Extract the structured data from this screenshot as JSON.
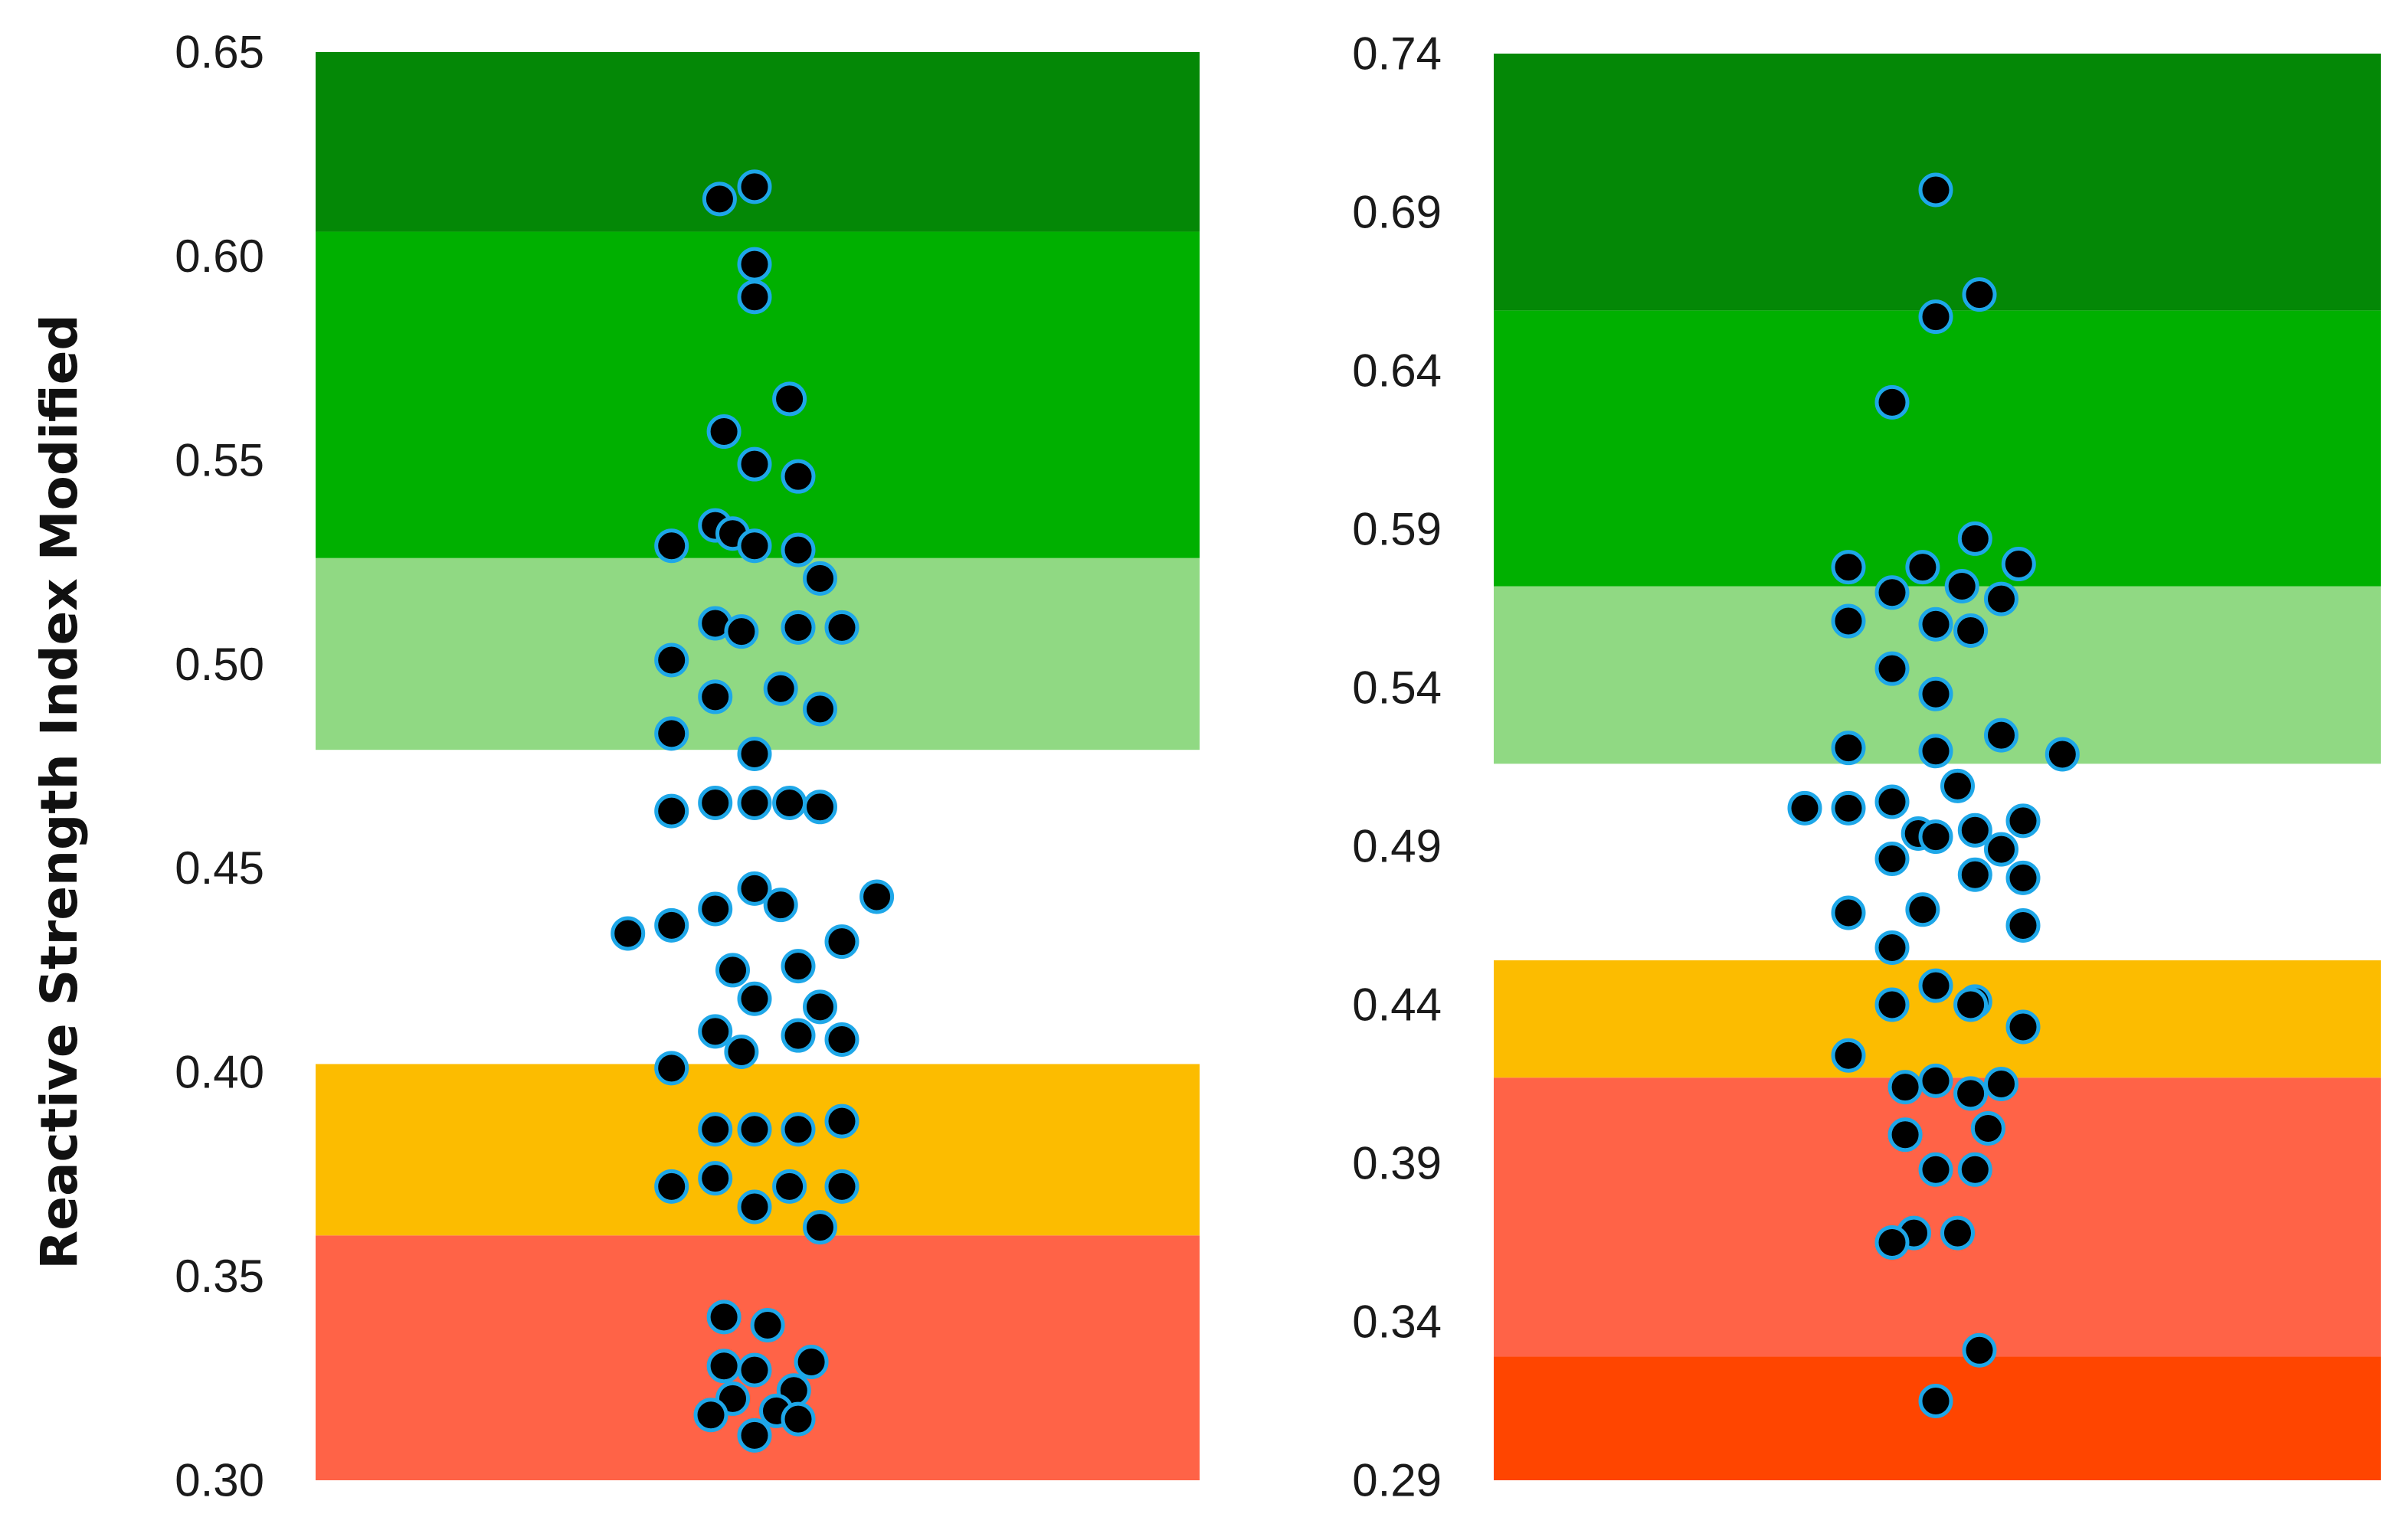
{
  "chart_data": {
    "y_axis_label": "Reactive Strength Index Modified",
    "panels": [
      {
        "type": "scatter",
        "subtype": "beeswarm-with-bands",
        "ylim": [
          0.3,
          0.65
        ],
        "yticks": [
          "0.30",
          "0.35",
          "0.40",
          "0.45",
          "0.50",
          "0.55",
          "0.60",
          "0.65"
        ],
        "bands": [
          {
            "from": 0.3,
            "to": 0.36,
            "color": "#ff6347"
          },
          {
            "from": 0.36,
            "to": 0.402,
            "color": "#fcbc00"
          },
          {
            "from": 0.479,
            "to": 0.526,
            "color": "#90d983"
          },
          {
            "from": 0.526,
            "to": 0.606,
            "color": "#00b000"
          },
          {
            "from": 0.606,
            "to": 0.65,
            "color": "#048806"
          }
        ],
        "points": [
          {
            "y": 0.617,
            "dx": 0.0
          },
          {
            "y": 0.614,
            "dx": -0.8
          },
          {
            "y": 0.598,
            "dx": 0.0
          },
          {
            "y": 0.59,
            "dx": 0.0
          },
          {
            "y": 0.565,
            "dx": 0.8
          },
          {
            "y": 0.557,
            "dx": -0.7
          },
          {
            "y": 0.549,
            "dx": 0.0
          },
          {
            "y": 0.546,
            "dx": 1.0
          },
          {
            "y": 0.534,
            "dx": -0.9
          },
          {
            "y": 0.532,
            "dx": -0.5
          },
          {
            "y": 0.529,
            "dx": -1.9
          },
          {
            "y": 0.529,
            "dx": 0.0
          },
          {
            "y": 0.528,
            "dx": 1.0
          },
          {
            "y": 0.521,
            "dx": 1.5
          },
          {
            "y": 0.51,
            "dx": -0.9
          },
          {
            "y": 0.509,
            "dx": 1.0
          },
          {
            "y": 0.509,
            "dx": 2.0
          },
          {
            "y": 0.508,
            "dx": -0.3
          },
          {
            "y": 0.501,
            "dx": -1.9
          },
          {
            "y": 0.494,
            "dx": 0.6
          },
          {
            "y": 0.492,
            "dx": -0.9
          },
          {
            "y": 0.489,
            "dx": 1.5
          },
          {
            "y": 0.483,
            "dx": -1.9
          },
          {
            "y": 0.478,
            "dx": 0.0
          },
          {
            "y": 0.466,
            "dx": 0.8
          },
          {
            "y": 0.466,
            "dx": -0.9
          },
          {
            "y": 0.466,
            "dx": 0.0
          },
          {
            "y": 0.465,
            "dx": 1.5
          },
          {
            "y": 0.464,
            "dx": -1.9
          },
          {
            "y": 0.443,
            "dx": 2.8
          },
          {
            "y": 0.445,
            "dx": 0.0
          },
          {
            "y": 0.441,
            "dx": 0.6
          },
          {
            "y": 0.44,
            "dx": -0.9
          },
          {
            "y": 0.436,
            "dx": -1.9
          },
          {
            "y": 0.434,
            "dx": -2.9
          },
          {
            "y": 0.432,
            "dx": 2.0
          },
          {
            "y": 0.426,
            "dx": 1.0
          },
          {
            "y": 0.425,
            "dx": -0.5
          },
          {
            "y": 0.418,
            "dx": 0.0
          },
          {
            "y": 0.416,
            "dx": 1.5
          },
          {
            "y": 0.41,
            "dx": -0.9
          },
          {
            "y": 0.409,
            "dx": 1.0
          },
          {
            "y": 0.408,
            "dx": 2.0
          },
          {
            "y": 0.405,
            "dx": -0.3
          },
          {
            "y": 0.401,
            "dx": -1.9
          },
          {
            "y": 0.388,
            "dx": 2.0
          },
          {
            "y": 0.386,
            "dx": -0.9
          },
          {
            "y": 0.386,
            "dx": 0.0
          },
          {
            "y": 0.386,
            "dx": 1.0
          },
          {
            "y": 0.374,
            "dx": -0.9
          },
          {
            "y": 0.372,
            "dx": 0.8
          },
          {
            "y": 0.372,
            "dx": -1.9
          },
          {
            "y": 0.372,
            "dx": 2.0
          },
          {
            "y": 0.367,
            "dx": 0.0
          },
          {
            "y": 0.362,
            "dx": 1.5
          },
          {
            "y": 0.34,
            "dx": -0.7
          },
          {
            "y": 0.338,
            "dx": 0.3
          },
          {
            "y": 0.329,
            "dx": 1.3
          },
          {
            "y": 0.328,
            "dx": -0.7
          },
          {
            "y": 0.327,
            "dx": 0.0
          },
          {
            "y": 0.322,
            "dx": 0.9
          },
          {
            "y": 0.32,
            "dx": -0.5
          },
          {
            "y": 0.317,
            "dx": 0.5
          },
          {
            "y": 0.316,
            "dx": -1.0
          },
          {
            "y": 0.315,
            "dx": 1.0
          },
          {
            "y": 0.311,
            "dx": 0.0
          }
        ]
      },
      {
        "type": "scatter",
        "subtype": "beeswarm-with-bands",
        "ylim": [
          0.29,
          0.74
        ],
        "yticks": [
          "0.29",
          "0.34",
          "0.39",
          "0.44",
          "0.49",
          "0.54",
          "0.59",
          "0.64",
          "0.69",
          "0.74"
        ],
        "bands": [
          {
            "from": 0.29,
            "to": 0.329,
            "color": "#ff4500"
          },
          {
            "from": 0.329,
            "to": 0.417,
            "color": "#ff6347"
          },
          {
            "from": 0.417,
            "to": 0.454,
            "color": "#fcbc00"
          },
          {
            "from": 0.516,
            "to": 0.572,
            "color": "#90d983"
          },
          {
            "from": 0.572,
            "to": 0.659,
            "color": "#00b000"
          },
          {
            "from": 0.659,
            "to": 0.74,
            "color": "#048806"
          }
        ],
        "points": [
          {
            "y": 0.697,
            "dx": 0.0
          },
          {
            "y": 0.664,
            "dx": 1.0
          },
          {
            "y": 0.657,
            "dx": 0.0
          },
          {
            "y": 0.63,
            "dx": -1.0
          },
          {
            "y": 0.587,
            "dx": 0.9
          },
          {
            "y": 0.579,
            "dx": 1.9
          },
          {
            "y": 0.578,
            "dx": -2.0
          },
          {
            "y": 0.578,
            "dx": -0.3
          },
          {
            "y": 0.572,
            "dx": 0.6
          },
          {
            "y": 0.57,
            "dx": -1.0
          },
          {
            "y": 0.568,
            "dx": 1.5
          },
          {
            "y": 0.561,
            "dx": -2.0
          },
          {
            "y": 0.56,
            "dx": 0.0
          },
          {
            "y": 0.558,
            "dx": 0.8
          },
          {
            "y": 0.546,
            "dx": -1.0
          },
          {
            "y": 0.538,
            "dx": 0.0
          },
          {
            "y": 0.525,
            "dx": 1.5
          },
          {
            "y": 0.521,
            "dx": -2.0
          },
          {
            "y": 0.52,
            "dx": 0.0
          },
          {
            "y": 0.519,
            "dx": 2.9
          },
          {
            "y": 0.509,
            "dx": 0.5
          },
          {
            "y": 0.504,
            "dx": -1.0
          },
          {
            "y": 0.502,
            "dx": -2.0
          },
          {
            "y": 0.502,
            "dx": -3.0
          },
          {
            "y": 0.498,
            "dx": 2.0
          },
          {
            "y": 0.495,
            "dx": 0.9
          },
          {
            "y": 0.494,
            "dx": -0.4
          },
          {
            "y": 0.493,
            "dx": 0.0
          },
          {
            "y": 0.489,
            "dx": 1.5
          },
          {
            "y": 0.486,
            "dx": -1.0
          },
          {
            "y": 0.481,
            "dx": 0.9
          },
          {
            "y": 0.48,
            "dx": 2.0
          },
          {
            "y": 0.47,
            "dx": -0.3
          },
          {
            "y": 0.469,
            "dx": -2.0
          },
          {
            "y": 0.465,
            "dx": 2.0
          },
          {
            "y": 0.458,
            "dx": -1.0
          },
          {
            "y": 0.446,
            "dx": 0.0
          },
          {
            "y": 0.441,
            "dx": 0.9
          },
          {
            "y": 0.44,
            "dx": -1.0
          },
          {
            "y": 0.44,
            "dx": 0.8
          },
          {
            "y": 0.433,
            "dx": 2.0
          },
          {
            "y": 0.424,
            "dx": -2.0
          },
          {
            "y": 0.416,
            "dx": 0.0
          },
          {
            "y": 0.415,
            "dx": 1.5
          },
          {
            "y": 0.414,
            "dx": -0.7
          },
          {
            "y": 0.412,
            "dx": 0.8
          },
          {
            "y": 0.401,
            "dx": 1.2
          },
          {
            "y": 0.399,
            "dx": -0.7
          },
          {
            "y": 0.388,
            "dx": 0.0
          },
          {
            "y": 0.388,
            "dx": 0.9
          },
          {
            "y": 0.368,
            "dx": -0.5
          },
          {
            "y": 0.368,
            "dx": 0.5
          },
          {
            "y": 0.365,
            "dx": -1.0
          },
          {
            "y": 0.331,
            "dx": 1.0
          },
          {
            "y": 0.315,
            "dx": 0.0
          }
        ]
      }
    ]
  }
}
